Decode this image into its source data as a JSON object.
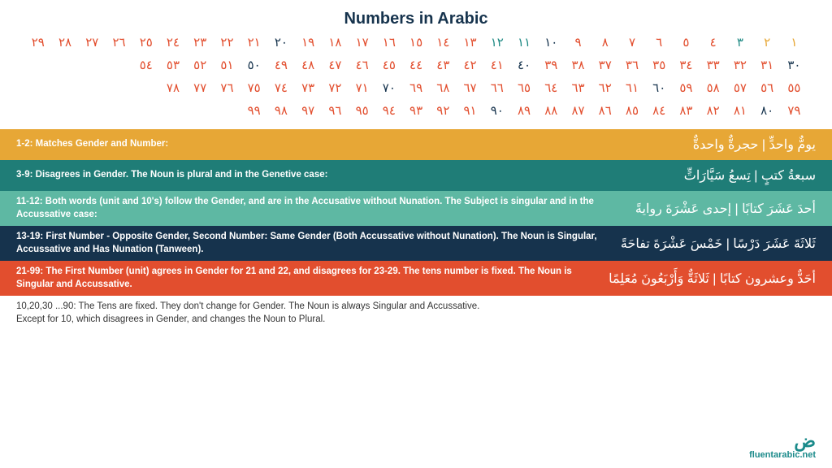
{
  "title": "Numbers in Arabic",
  "title_color": "#16334d",
  "colors": {
    "base": "#16334d",
    "orange": "#e24e2e",
    "orange_alt": "#e7a736",
    "teal": "#1f8a84",
    "row_gold": "#e7a736",
    "row_teal_dark": "#1f7d77",
    "row_teal_light": "#5eb8a3",
    "row_navy": "#16334d",
    "row_orange": "#e24e2e"
  },
  "numbers": {
    "glyphs": [
      "٠",
      "١",
      "٢",
      "٣",
      "٤",
      "٥",
      "٦",
      "٧",
      "٨",
      "٩"
    ],
    "rows": [
      {
        "start": 1,
        "end": 29,
        "pad": 29
      },
      {
        "start": 30,
        "end": 54,
        "pad": 29
      },
      {
        "start": 55,
        "end": 78,
        "pad": 29
      },
      {
        "start": 79,
        "end": 99,
        "pad": 29
      }
    ],
    "color_map": {
      "ten": "#16334d",
      "default": "#e24e2e",
      "special_teal": [
        3,
        11,
        12
      ],
      "special_gold": [
        1,
        2
      ]
    }
  },
  "rules": [
    {
      "bg": "#e7a736",
      "left": "1-2: Matches Gender and Number:",
      "right": "يومٌّ واحدٍّ  |  حجرةٌّ واحدةٌّ"
    },
    {
      "bg": "#1f7d77",
      "left": "3-9: Disagrees in Gender. The Noun is plural and in the Genetive case:",
      "right": "سبعةُ كتبٍ | تِسعُ سَيَّارَاتٍّ"
    },
    {
      "bg": "#5eb8a3",
      "left": "11-12: Both words (unit and 10's) follow the Gender, and are in the Accusative without Nunation. The Subject is singular and in the Accussative case:",
      "right": "أحدَ عَشَرَ كتابًا  |  إحدى عَشْرَةَ روايةً"
    },
    {
      "bg": "#16334d",
      "left": "13-19: First Number - Opposite Gender, Second Number: Same Gender (Both Accussative without Nunation). The Noun is Singular, Accussative and Has Nunation (Tanween).",
      "right": "ثَلاثَةَ عَشَرَ دَرْسًا   |  خَمْسَ عَشْرَةَ تفاحَةً"
    },
    {
      "bg": "#e24e2e",
      "left": "21-99: The First Number (unit) agrees in Gender for 21 and 22, and disagrees for 23-29. The tens number is fixed. The Noun is Singular and Accussative.",
      "right": "أحَدٌّ وعشرون كتابًا  |  ثَلاثَةٌّ وَأَرْبَعُونَ مُعَلِمًا"
    }
  ],
  "footer_note": "10,20,30 ...90: The Tens are fixed. They don't change for Gender. The Noun is always Singular and Accussative. Except for 10, which disagrees in Gender, and changes the Noun to Plural.",
  "brand": {
    "top": "ض",
    "bot": "fluentarabic.net"
  }
}
